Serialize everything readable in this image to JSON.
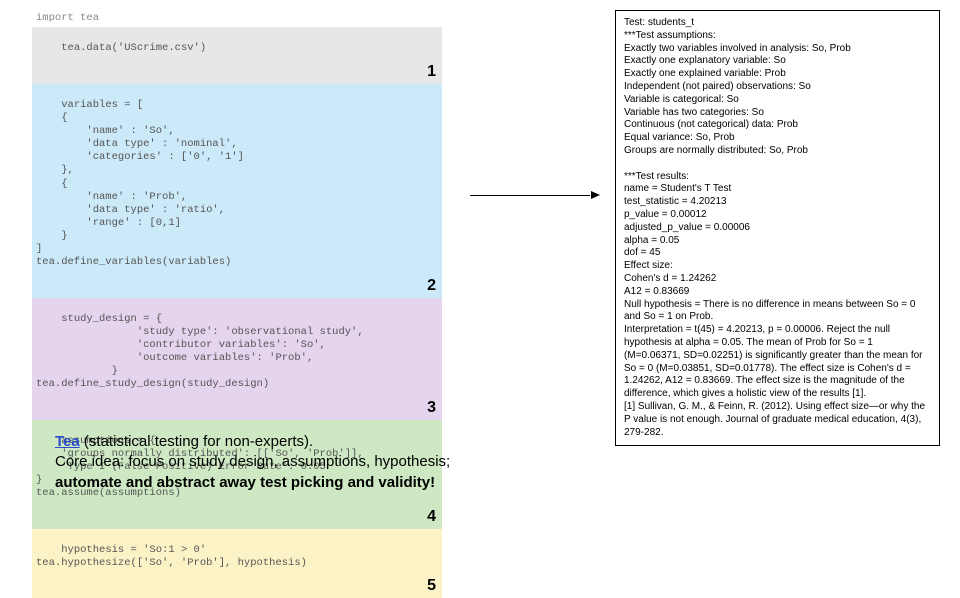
{
  "code": {
    "import_line": "import tea",
    "block1": {
      "text": "tea.data('UScrime.csv')",
      "num": "1",
      "bg": "#e7e7e7"
    },
    "block2": {
      "text": "variables = [\n    {\n        'name' : 'So',\n        'data type' : 'nominal',\n        'categories' : ['0', '1']\n    },\n    {\n        'name' : 'Prob',\n        'data type' : 'ratio',\n        'range' : [0,1]\n    }\n]\ntea.define_variables(variables)",
      "num": "2",
      "bg": "#cbe9f9"
    },
    "block3": {
      "text": "study_design = {\n                'study type': 'observational study',\n                'contributor variables': 'So',\n                'outcome variables': 'Prob',\n            }\ntea.define_study_design(study_design)",
      "num": "3",
      "bg": "#e4d4ee"
    },
    "block4": {
      "text": "assumptions = {\n    'groups normally distributed': [['So', 'Prob']],\n    'Type I (False Positive) Error Rate': 0.05\n}\ntea.assume(assumptions)",
      "num": "4",
      "bg": "#cde8c3"
    },
    "block5": {
      "text": "hypothesis = 'So:1 > 0'\ntea.hypothesize(['So', 'Prob'], hypothesis)",
      "num": "5",
      "bg": "#fbf3c6"
    }
  },
  "output": {
    "lines": [
      "Test: students_t",
      "***Test assumptions:",
      "Exactly two variables involved in analysis: So, Prob",
      "Exactly one explanatory variable: So",
      "Exactly one explained variable: Prob",
      "Independent (not paired) observations: So",
      "Variable is categorical: So",
      "Variable has two categories: So",
      "Continuous (not categorical) data: Prob",
      "Equal variance: So, Prob",
      "Groups are normally distributed: So, Prob",
      "",
      "***Test results:",
      "name = Student's T Test",
      "test_statistic = 4.20213",
      "p_value = 0.00012",
      "adjusted_p_value = 0.00006",
      "alpha = 0.05",
      "dof = 45",
      "Effect size:",
      "Cohen's d = 1.24262",
      "A12 = 0.83669",
      "Null hypothesis = There is no difference in means between So = 0 and So = 1 on Prob.",
      "Interpretation = t(45) = 4.20213, p = 0.00006. Reject the null hypothesis at alpha = 0.05. The mean of Prob for So = 1 (M=0.06371, SD=0.02251) is significantly greater than the mean for So = 0 (M=0.03851, SD=0.01778). The effect size is Cohen's d = 1.24262, A12 = 0.83669. The effect size is the magnitude of the difference, which gives a holistic view of the results [1].",
      "[1] Sullivan, G. M., & Feinn, R. (2012). Using effect size—or why the P value is not enough. Journal of graduate medical education, 4(3), 279-282."
    ]
  },
  "caption": {
    "tea_label": "Tea",
    "line1_rest": " (statistical testing for non-experts).",
    "line2": "Core idea: focus on study design, assumptions, hypothesis;",
    "line3_bold": "automate and abstract away test picking and validity!"
  },
  "colors": {
    "arrow": "#000000",
    "output_border": "#000000",
    "code_text": "#555555",
    "link": "#2a4bc9"
  }
}
